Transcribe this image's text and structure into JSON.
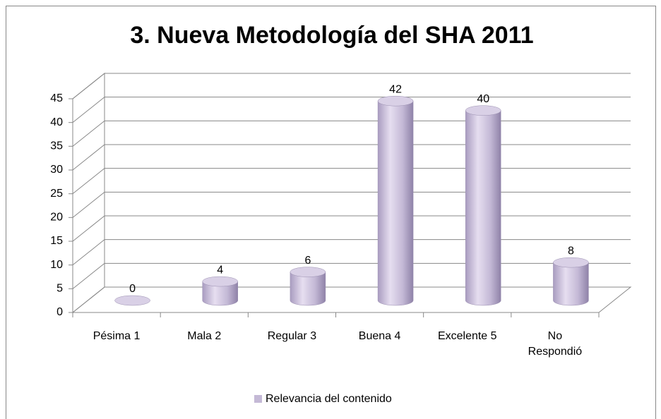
{
  "chart_data": {
    "type": "bar3d",
    "title": "3. Nueva Metodología del SHA 2011",
    "categories": [
      "Pésima 1",
      "Mala 2",
      "Regular 3",
      "Buena 4",
      "Excelente 5",
      "No Respondió"
    ],
    "series": [
      {
        "name": "Relevancia del contenido",
        "color": "#c4b9d6",
        "values": [
          0,
          4,
          6,
          42,
          40,
          8
        ]
      }
    ],
    "ylim": [
      0,
      45
    ],
    "yticks": [
      0,
      5,
      10,
      15,
      20,
      25,
      30,
      35,
      40,
      45
    ],
    "grid": true,
    "legend": "bottom"
  }
}
